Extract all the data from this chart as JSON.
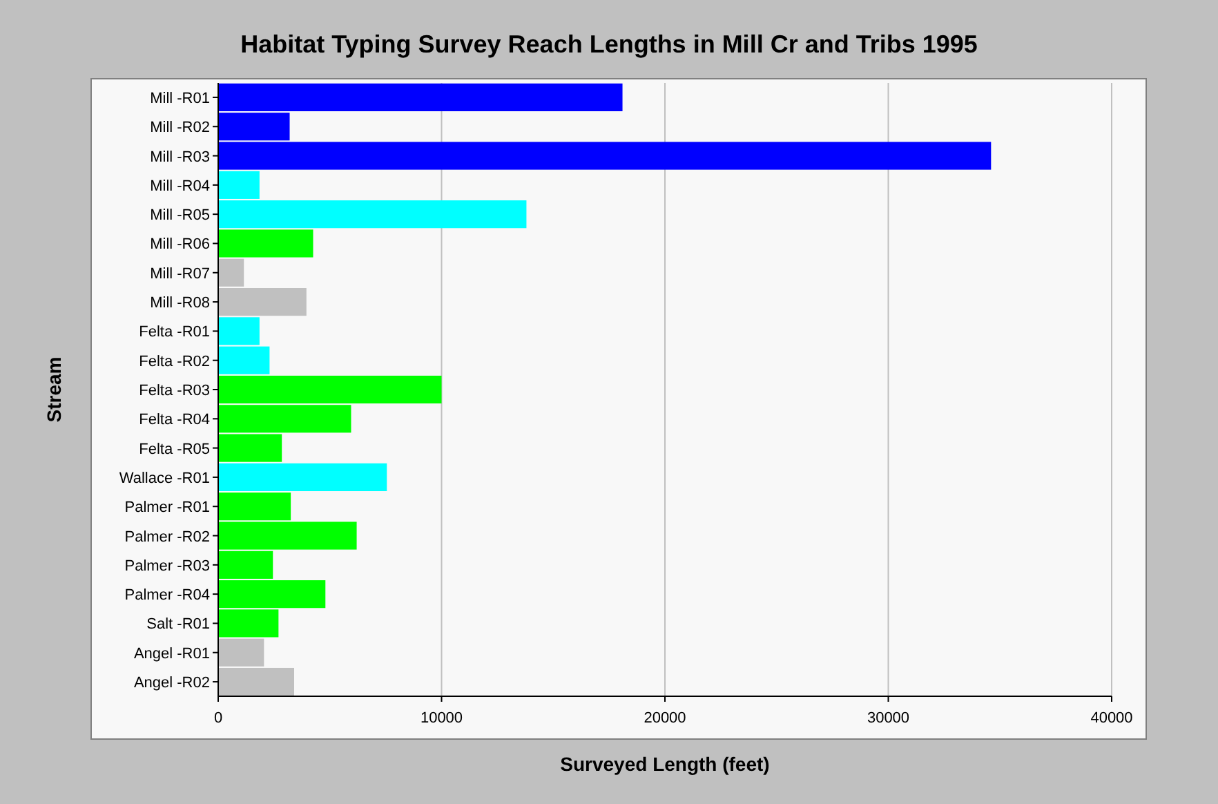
{
  "chart_data": {
    "type": "bar",
    "orientation": "horizontal",
    "title": "Habitat Typing Survey Reach Lengths in Mill Cr and Tribs 1995",
    "xlabel": "Surveyed Length (feet)",
    "ylabel": "Stream",
    "categories": [
      "Mill -R01",
      "Mill -R02",
      "Mill -R03",
      "Mill -R04",
      "Mill -R05",
      "Mill -R06",
      "Mill -R07",
      "Mill -R08",
      "Felta -R01",
      "Felta -R02",
      "Felta -R03",
      "Felta -R04",
      "Felta -R05",
      "Wallace -R01",
      "Palmer -R01",
      "Palmer -R02",
      "Palmer -R03",
      "Palmer -R04",
      "Salt -R01",
      "Angel -R01",
      "Angel -R02"
    ],
    "values": [
      18100,
      3200,
      34600,
      1850,
      13800,
      4250,
      1150,
      3950,
      1850,
      2300,
      10000,
      5950,
      2850,
      7550,
      3250,
      6200,
      2450,
      4800,
      2700,
      2050,
      3400
    ],
    "colors": [
      "#0000ff",
      "#0000ff",
      "#0000ff",
      "#00ffff",
      "#00ffff",
      "#00ff00",
      "#c0c0c0",
      "#c0c0c0",
      "#00ffff",
      "#00ffff",
      "#00ff00",
      "#00ff00",
      "#00ff00",
      "#00ffff",
      "#00ff00",
      "#00ff00",
      "#00ff00",
      "#00ff00",
      "#00ff00",
      "#c0c0c0",
      "#c0c0c0"
    ],
    "xlim": [
      0,
      40000
    ],
    "xticks": [
      0,
      10000,
      20000,
      30000,
      40000
    ],
    "grid": "x"
  }
}
